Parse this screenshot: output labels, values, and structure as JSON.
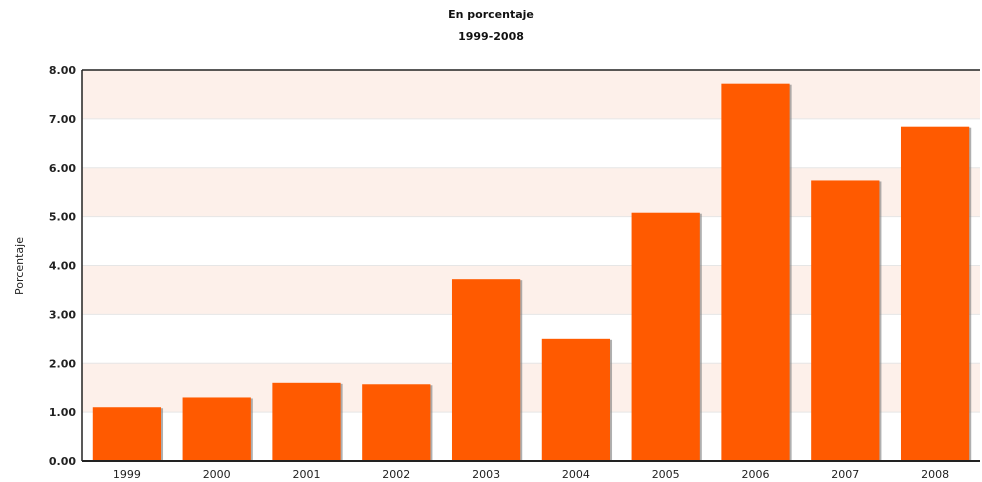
{
  "chart_data": {
    "type": "bar",
    "title": "En porcentaje",
    "subtitle": "1999-2008",
    "xlabel": "",
    "ylabel": "Porcentaje",
    "categories": [
      "1999",
      "2000",
      "2001",
      "2002",
      "2003",
      "2004",
      "2005",
      "2006",
      "2007",
      "2008"
    ],
    "values": [
      1.1,
      1.3,
      1.6,
      1.57,
      3.72,
      2.5,
      5.08,
      7.72,
      5.74,
      6.84
    ],
    "ylim": [
      0,
      8
    ],
    "yticks": [
      "0.00",
      "1.00",
      "2.00",
      "3.00",
      "4.00",
      "5.00",
      "6.00",
      "7.00",
      "8.00"
    ],
    "grid": true,
    "bar_color": "#ff5a00",
    "band_color": "#fdf0ea"
  }
}
